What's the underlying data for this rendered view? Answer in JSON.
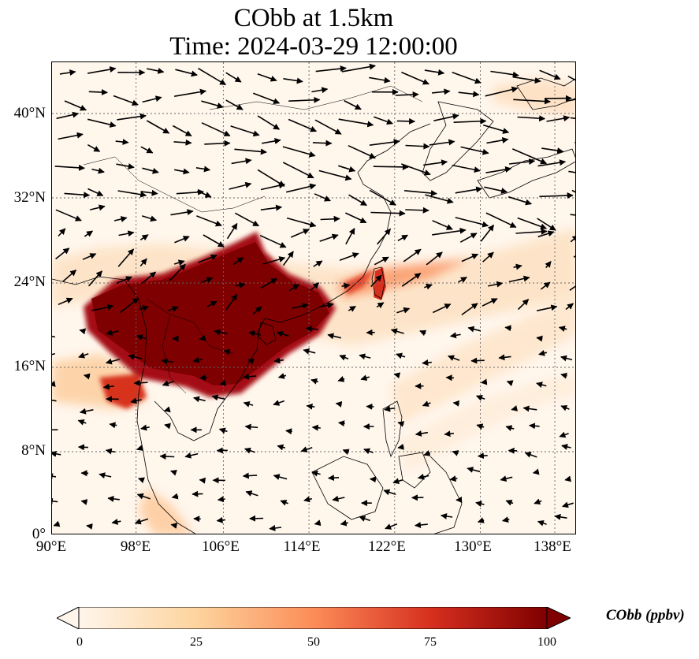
{
  "title": {
    "line1": "CObb at 1.5km",
    "line2": "Time: 2024-03-29 12:00:00"
  },
  "map": {
    "lon_ticks": [
      "90°E",
      "98°E",
      "106°E",
      "114°E",
      "122°E",
      "130°E",
      "138°E"
    ],
    "lat_ticks": [
      "40°N",
      "32°N",
      "24°N",
      "16°N",
      "8°N",
      "0°"
    ],
    "lon_range": [
      90,
      139
    ],
    "lat_range": [
      0,
      45
    ],
    "gridlines": true
  },
  "colorbar": {
    "label": "CObb (ppbv)",
    "ticks": [
      "0",
      "25",
      "50",
      "75",
      "100"
    ],
    "range": [
      0,
      100
    ],
    "extend": "both",
    "colors": [
      "#fff5eb",
      "#fdd49e",
      "#fc8d59",
      "#d7301f",
      "#7f0000"
    ]
  }
}
